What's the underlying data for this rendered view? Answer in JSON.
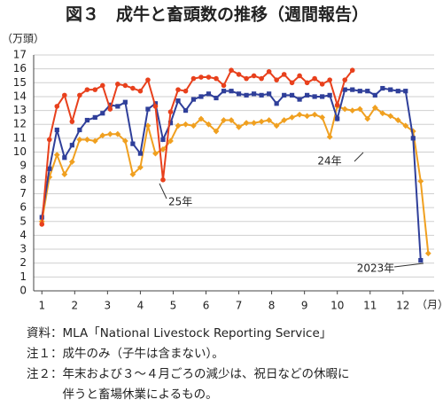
{
  "chart_data": {
    "type": "line",
    "title": "図３　成牛と畜頭数の推移（週間報告）",
    "y_label": "（万頭）",
    "x_label": "（月）",
    "x": [
      1,
      1.23,
      1.46,
      1.69,
      1.92,
      2.15,
      2.38,
      2.62,
      2.85,
      3.08,
      3.31,
      3.54,
      3.77,
      4.0,
      4.23,
      4.46,
      4.69,
      4.92,
      5.15,
      5.38,
      5.62,
      5.85,
      6.08,
      6.31,
      6.54,
      6.77,
      7.0,
      7.23,
      7.46,
      7.69,
      7.92,
      8.15,
      8.38,
      8.62,
      8.85,
      9.08,
      9.31,
      9.54,
      9.77,
      10.0,
      10.23,
      10.46,
      10.69,
      10.92,
      11.15,
      11.38,
      11.62,
      11.85,
      12.08,
      12.31,
      12.54,
      12.77
    ],
    "series": [
      {
        "name": "25年",
        "color": "#e8401c",
        "marker": "circle",
        "values": [
          4.8,
          10.9,
          13.3,
          14.1,
          12.2,
          14.1,
          14.5,
          14.5,
          14.8,
          13.1,
          14.9,
          14.8,
          14.6,
          14.4,
          15.2,
          13.3,
          8.0,
          12.9,
          14.5,
          14.4,
          15.3,
          15.4,
          15.4,
          15.3,
          14.8,
          15.9,
          15.6,
          15.3,
          15.5,
          15.3,
          15.8,
          15.2,
          15.6,
          15.0,
          15.5,
          15.0,
          15.3,
          14.9,
          15.2,
          13.4,
          15.2,
          15.9,
          null,
          null,
          null,
          null,
          null,
          null,
          null,
          null,
          null,
          null
        ]
      },
      {
        "name": "24年",
        "color": "#2f3f9a",
        "marker": "square",
        "values": [
          5.3,
          8.8,
          11.6,
          9.6,
          10.5,
          11.6,
          12.3,
          12.5,
          12.8,
          13.4,
          13.3,
          13.6,
          10.6,
          9.9,
          13.1,
          13.5,
          10.9,
          12.1,
          13.7,
          13.0,
          13.8,
          14.0,
          14.2,
          13.9,
          14.4,
          14.4,
          14.2,
          14.1,
          14.2,
          14.1,
          14.2,
          13.5,
          14.1,
          14.1,
          13.8,
          14.1,
          14.0,
          14.0,
          14.1,
          12.4,
          14.5,
          14.5,
          14.4,
          14.4,
          14.1,
          14.6,
          14.5,
          14.4,
          14.4,
          11.0,
          2.2,
          null
        ]
      },
      {
        "name": "2023年",
        "color": "#f0a020",
        "marker": "diamond",
        "values": [
          5.0,
          8.2,
          9.8,
          8.4,
          9.3,
          10.9,
          10.9,
          10.8,
          11.2,
          11.3,
          11.3,
          10.8,
          8.4,
          8.9,
          11.9,
          9.9,
          10.2,
          10.8,
          11.9,
          12.0,
          11.9,
          12.4,
          12.0,
          11.5,
          12.3,
          12.3,
          11.8,
          12.1,
          12.1,
          12.2,
          12.3,
          11.9,
          12.3,
          12.5,
          12.7,
          12.6,
          12.7,
          12.5,
          11.1,
          13.3,
          13.1,
          13.0,
          13.1,
          12.4,
          13.2,
          12.8,
          12.6,
          12.3,
          11.9,
          11.5,
          7.9,
          2.7
        ]
      }
    ],
    "xlim": [
      0.75,
      12.95
    ],
    "xticks": [
      1,
      2,
      3,
      4,
      5,
      6,
      7,
      8,
      9,
      10,
      11,
      12
    ],
    "ylim": [
      0,
      17
    ],
    "yticks": [
      0,
      1,
      2,
      3,
      4,
      5,
      6,
      7,
      8,
      9,
      10,
      11,
      12,
      13,
      14,
      15,
      16,
      17
    ],
    "grid": true,
    "notes": [
      "資料：MLA「National Livestock Reporting Service」",
      "注１：成牛のみ（子牛は含まない）。",
      "注２：年末および３～４月ごろの減少は、祝日などの休暇に",
      "　　　伴うと畜場休業によるもの。"
    ]
  }
}
